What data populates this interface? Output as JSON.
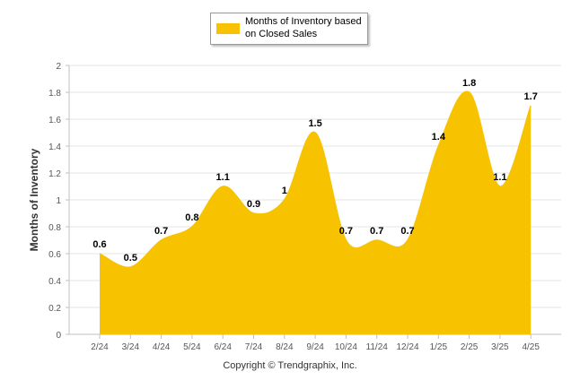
{
  "chart_data": {
    "type": "area",
    "categories": [
      "2/24",
      "3/24",
      "4/24",
      "5/24",
      "6/24",
      "7/24",
      "8/24",
      "9/24",
      "10/24",
      "11/24",
      "12/24",
      "1/25",
      "2/25",
      "3/25",
      "4/25"
    ],
    "series": [
      {
        "name": "Months of Inventory based on Closed Sales",
        "values": [
          0.6,
          0.5,
          0.7,
          0.8,
          1.1,
          0.9,
          1,
          1.5,
          0.7,
          0.7,
          0.7,
          1.4,
          1.8,
          1.1,
          1.7
        ],
        "labels": [
          "0.6",
          "0.5",
          "0.7",
          "0.8",
          "1.1",
          "0.9",
          "1",
          "1.5",
          "0.7",
          "0.7",
          "0.7",
          "1.4",
          "1.8",
          "1.1",
          "1.7"
        ]
      }
    ],
    "ylabel": "Months of Inventory",
    "xlabel": "",
    "ylim": [
      0,
      2
    ],
    "yticks": [
      "0",
      "0.2",
      "0.4",
      "0.6",
      "0.8",
      "1",
      "1.2",
      "1.4",
      "1.6",
      "1.8",
      "2"
    ],
    "grid": true,
    "legend": "top-center",
    "color": "#f7c200"
  },
  "legend": {
    "line1": "Months of Inventory based",
    "line2": "on Closed Sales"
  },
  "footer": "Copyright © Trendgraphix, Inc."
}
